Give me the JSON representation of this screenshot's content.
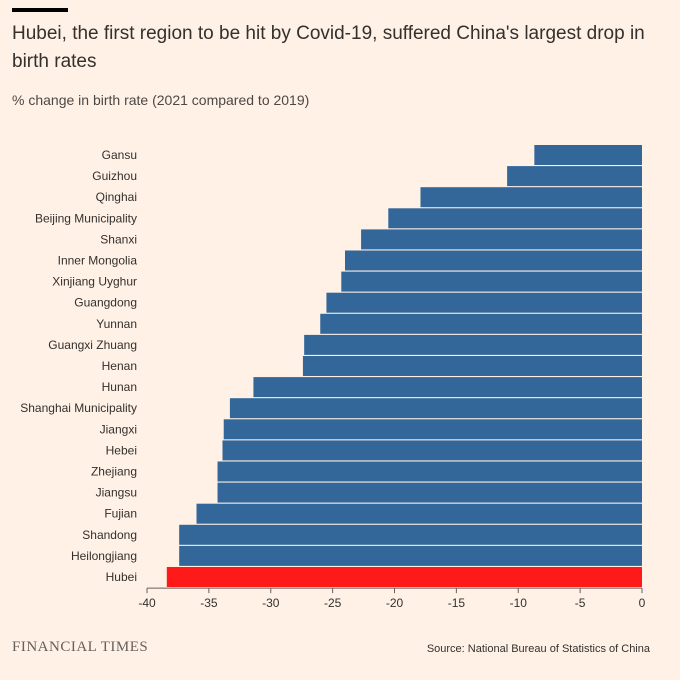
{
  "header": {
    "title": "Hubei, the first region to be hit by Covid-19, suffered China's largest drop in birth rates",
    "subtitle": "% change in birth rate (2021 compared to 2019)"
  },
  "footer": {
    "brand": "FINANCIAL TIMES",
    "source": "Source: National Bureau of Statistics of China"
  },
  "colors": {
    "background": "#fff1e5",
    "bar": "#336699",
    "highlight": "#ff1a1a"
  },
  "chart_data": {
    "type": "bar",
    "orientation": "horizontal",
    "categories": [
      "Gansu",
      "Guizhou",
      "Qinghai",
      "Beijing Municipality",
      "Shanxi",
      "Inner Mongolia",
      "Xinjiang Uyghur",
      "Guangdong",
      "Yunnan",
      "Guangxi Zhuang",
      "Henan",
      "Hunan",
      "Shanghai Municipality",
      "Jiangxi",
      "Hebei",
      "Zhejiang",
      "Jiangsu",
      "Fujian",
      "Shandong",
      "Heilongjiang",
      "Hubei"
    ],
    "values": [
      -8.7,
      -10.9,
      -17.9,
      -20.5,
      -22.7,
      -24.0,
      -24.3,
      -25.5,
      -26.0,
      -27.3,
      -27.4,
      -31.4,
      -33.3,
      -33.8,
      -33.9,
      -34.3,
      -34.3,
      -36.0,
      -37.4,
      -37.4,
      -38.4
    ],
    "highlight": [
      "Hubei"
    ],
    "xlim": [
      -40,
      0
    ],
    "xticks": [
      -40,
      -35,
      -30,
      -25,
      -20,
      -15,
      -10,
      -5,
      0
    ],
    "grid": false
  }
}
